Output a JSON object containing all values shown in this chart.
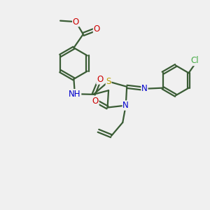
{
  "bg_color": "#f0f0f0",
  "bond_color": "#3a5c35",
  "bond_width": 1.6,
  "atom_colors": {
    "N": "#0000cc",
    "O": "#cc0000",
    "S": "#b8a000",
    "Cl": "#44aa44",
    "H": "#3a5c35"
  },
  "fs": 8.5,
  "figsize": [
    3.0,
    3.0
  ],
  "dpi": 100
}
